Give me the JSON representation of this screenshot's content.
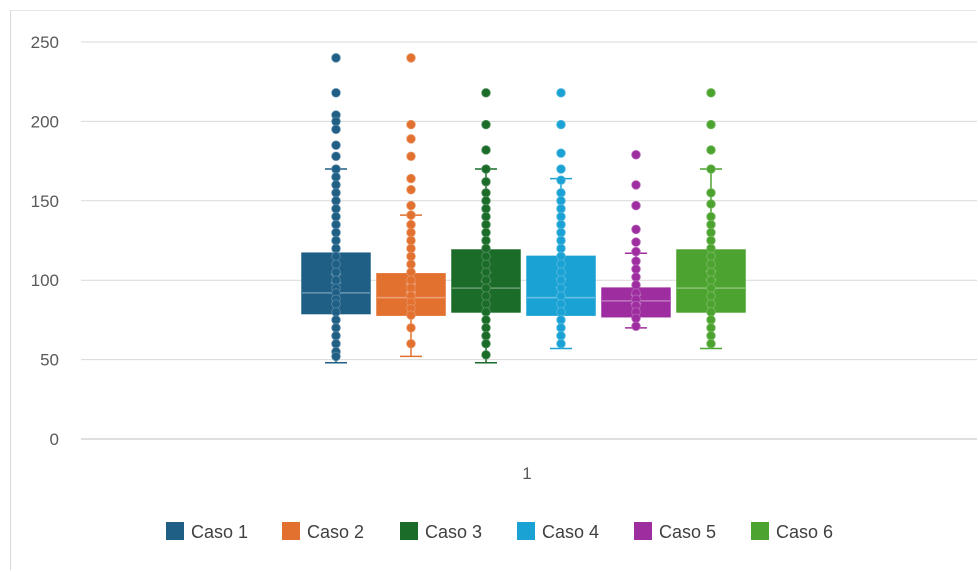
{
  "chart_data": {
    "type": "box",
    "title": "",
    "xlabel": "",
    "ylabel": "",
    "categories": [
      "1"
    ],
    "ylim": [
      0,
      250
    ],
    "yticks": [
      0,
      50,
      100,
      150,
      200,
      250
    ],
    "grid": true,
    "legend_position": "bottom",
    "series": [
      {
        "name": "Caso 1",
        "color": "#1f5f86",
        "whisker_low": 48,
        "q1": 79,
        "median": 92,
        "mean": 101,
        "q3": 117,
        "whisker_high": 170,
        "points": [
          240,
          218,
          204,
          200,
          195,
          185,
          178,
          170,
          165,
          160,
          155,
          150,
          145,
          140,
          135,
          130,
          125,
          120,
          115,
          110,
          105,
          100,
          95,
          92,
          88,
          85,
          80,
          75,
          70,
          65,
          60,
          55,
          52
        ]
      },
      {
        "name": "Caso 2",
        "color": "#e2702f",
        "whisker_low": 52,
        "q1": 78,
        "median": 89,
        "mean": 95,
        "q3": 104,
        "whisker_high": 141,
        "points": [
          240,
          198,
          189,
          178,
          164,
          157,
          147,
          141,
          135,
          130,
          125,
          120,
          115,
          110,
          105,
          100,
          95,
          90,
          86,
          82,
          78,
          70,
          60
        ]
      },
      {
        "name": "Caso 3",
        "color": "#1b6b29",
        "whisker_low": 48,
        "q1": 80,
        "median": 95,
        "mean": 102,
        "q3": 119,
        "whisker_high": 170,
        "points": [
          218,
          198,
          182,
          170,
          162,
          155,
          150,
          145,
          140,
          135,
          130,
          125,
          120,
          115,
          110,
          105,
          100,
          95,
          90,
          85,
          80,
          75,
          70,
          65,
          60,
          53
        ]
      },
      {
        "name": "Caso 4",
        "color": "#1aa2d4",
        "whisker_low": 57,
        "q1": 78,
        "median": 89,
        "mean": 98,
        "q3": 115,
        "whisker_high": 164,
        "points": [
          218,
          198,
          180,
          170,
          163,
          155,
          150,
          145,
          140,
          135,
          130,
          125,
          120,
          115,
          110,
          105,
          100,
          95,
          90,
          85,
          80,
          75,
          70,
          65,
          60
        ]
      },
      {
        "name": "Caso 5",
        "color": "#9e2ea0",
        "whisker_low": 70,
        "q1": 77,
        "median": 87,
        "mean": 88,
        "q3": 95,
        "whisker_high": 117,
        "points": [
          179,
          160,
          147,
          132,
          124,
          118,
          112,
          107,
          102,
          97,
          92,
          88,
          84,
          80,
          76,
          71
        ]
      },
      {
        "name": "Caso 6",
        "color": "#4ca32f",
        "whisker_low": 57,
        "q1": 80,
        "median": 95,
        "mean": 103,
        "q3": 119,
        "whisker_high": 170,
        "points": [
          218,
          198,
          182,
          170,
          155,
          148,
          140,
          135,
          130,
          125,
          120,
          115,
          110,
          105,
          100,
          95,
          90,
          85,
          80,
          75,
          70,
          65,
          60
        ]
      }
    ]
  }
}
